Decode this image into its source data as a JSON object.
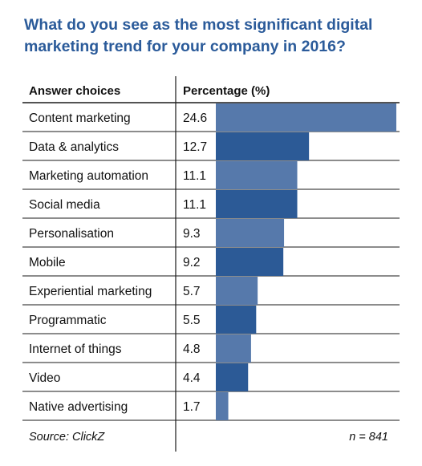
{
  "title_lines": [
    "What do you see as the most significant digital",
    "marketing trend for your company in 2016?"
  ],
  "chart_data": {
    "type": "bar",
    "orientation": "horizontal",
    "title": "What do you see as the most significant digital marketing trend for your company in 2016?",
    "column_headers": [
      "Answer choices",
      "Percentage (%)"
    ],
    "categories": [
      "Content marketing",
      "Data & analytics",
      "Marketing automation",
      "Social media",
      "Personalisation",
      "Mobile",
      "Experiential marketing",
      "Programmatic",
      "Internet of things",
      "Video",
      "Native advertising"
    ],
    "values": [
      24.6,
      12.7,
      11.1,
      11.1,
      9.3,
      9.2,
      5.7,
      5.5,
      4.8,
      4.4,
      1.7
    ],
    "value_labels": [
      "24.6",
      "12.7",
      "11.1",
      "11.1",
      "9.3",
      "9.2",
      "5.7",
      "5.5",
      "4.8",
      "4.4",
      "1.7"
    ],
    "xlim": [
      0,
      24.6
    ],
    "bar_colors": [
      "#5679ab",
      "#2c5a96"
    ],
    "grid": false,
    "source": "Source: ClickZ",
    "n_label": "n = 841"
  },
  "colors": {
    "title": "#2b5b9a",
    "bar_light": "#5679ab",
    "bar_dark": "#2c5a96",
    "rule": "#1a1a1a"
  }
}
